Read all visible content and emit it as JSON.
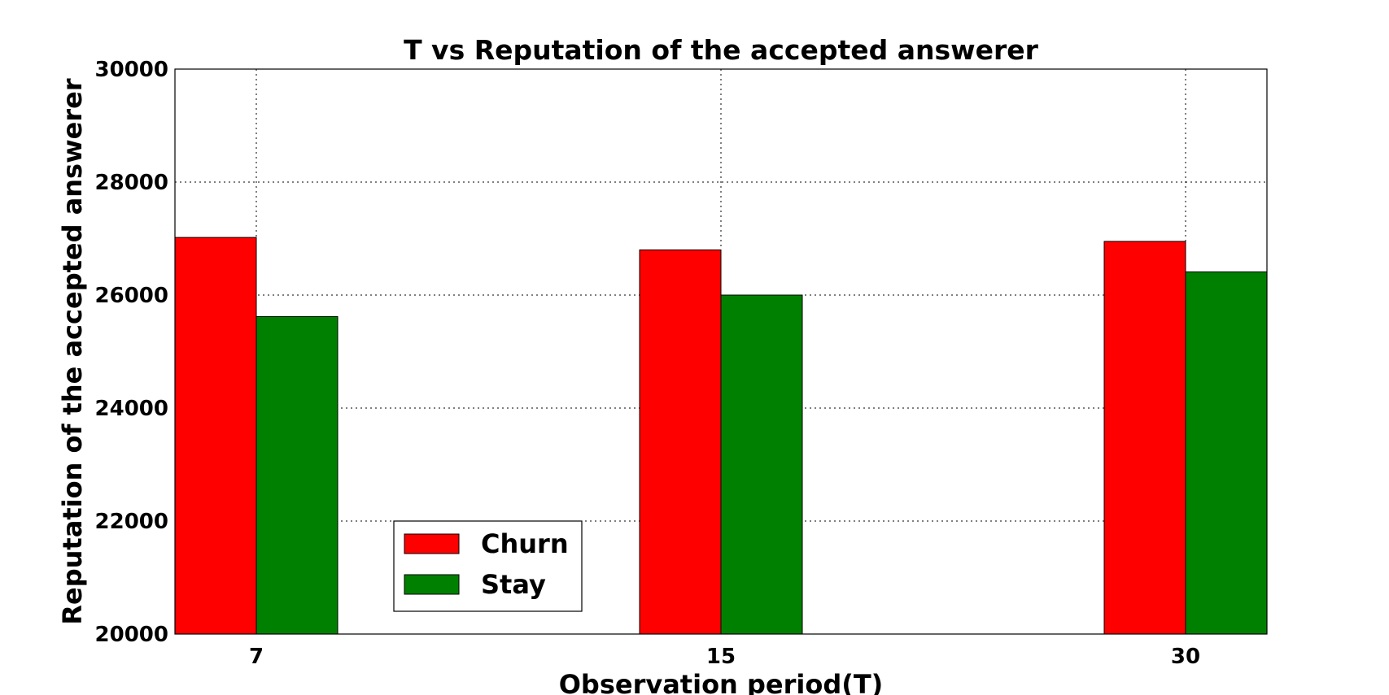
{
  "chart_data": {
    "type": "bar",
    "title": "T vs Reputation of the accepted answerer",
    "xlabel": "Observation period(T)",
    "ylabel": "Reputation of the accepted answerer",
    "categories": [
      "7",
      "15",
      "30"
    ],
    "series": [
      {
        "name": "Churn",
        "color": "#ff0000",
        "values": [
          27020,
          26800,
          26950
        ]
      },
      {
        "name": "Stay",
        "color": "#008000",
        "values": [
          25620,
          26000,
          26410
        ]
      }
    ],
    "ylim": [
      20000,
      30000
    ],
    "yticks": [
      "20000",
      "22000",
      "24000",
      "26000",
      "28000",
      "30000"
    ],
    "grid": true,
    "legend_position": "lower-left"
  }
}
